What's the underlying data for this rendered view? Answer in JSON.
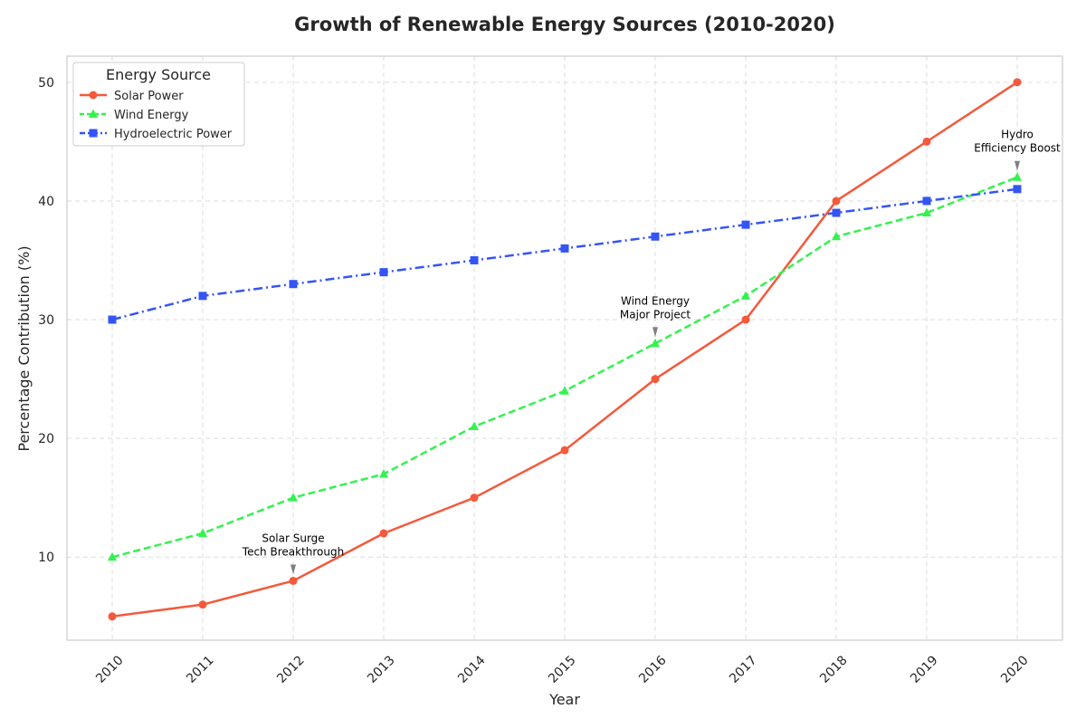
{
  "chart_data": {
    "type": "line",
    "title": "Growth of Renewable Energy Sources (2010-2020)",
    "xlabel": "Year",
    "ylabel": "Percentage Contribution (%)",
    "x": [
      "2010",
      "2011",
      "2012",
      "2013",
      "2014",
      "2015",
      "2016",
      "2017",
      "2018",
      "2019",
      "2020"
    ],
    "yticks": [
      10,
      20,
      30,
      40,
      50
    ],
    "ylim": [
      3,
      52.2
    ],
    "grid": true,
    "legend": {
      "title": "Energy Source",
      "placement": "top-left"
    },
    "series": [
      {
        "name": "Solar Power",
        "color": "#f4593b",
        "dash": "solid",
        "marker": "circle",
        "values": [
          5,
          6,
          8,
          12,
          15,
          19,
          25,
          30,
          40,
          45,
          50
        ]
      },
      {
        "name": "Wind Energy",
        "color": "#33f24f",
        "dash": "dashed",
        "marker": "triangle",
        "values": [
          10,
          12,
          15,
          17,
          21,
          24,
          28,
          32,
          37,
          39,
          42
        ]
      },
      {
        "name": "Hydroelectric Power",
        "color": "#3554f5",
        "dash": "dashdot",
        "marker": "square",
        "values": [
          30,
          32,
          33,
          34,
          35,
          36,
          37,
          38,
          39,
          40,
          41
        ]
      }
    ],
    "annotations": [
      {
        "lines": [
          "Solar Surge",
          "Tech Breakthrough"
        ],
        "x": "2012",
        "y": 8
      },
      {
        "lines": [
          "Wind Energy",
          "Major Project"
        ],
        "x": "2016",
        "y": 28
      },
      {
        "lines": [
          "Hydro",
          "Efficiency Boost"
        ],
        "x": "2020",
        "y": 42
      }
    ]
  }
}
